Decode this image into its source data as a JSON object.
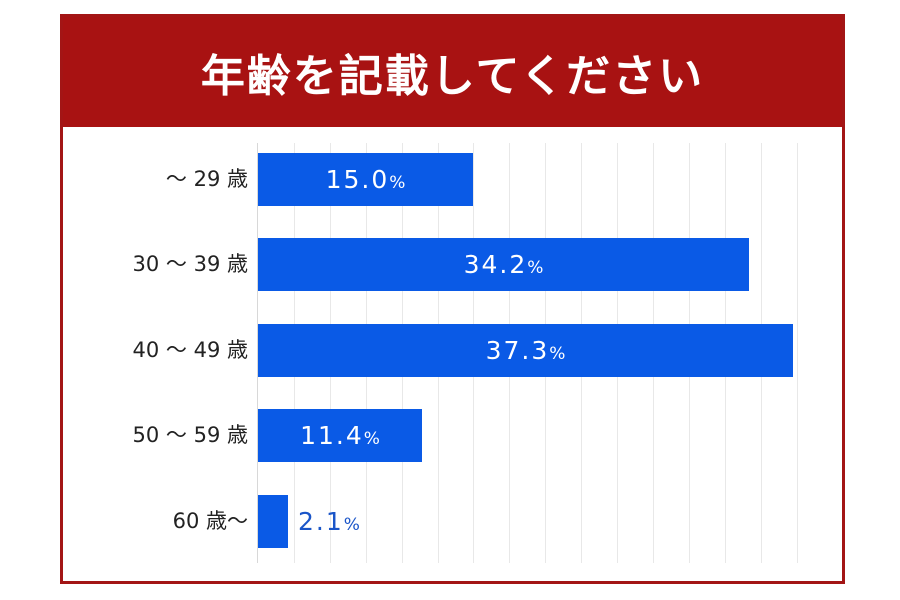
{
  "title": "年齢を記載してください",
  "colors": {
    "header": "#a81212",
    "bar": "#0a5ae6",
    "border": "#a31515",
    "outside_label": "#1a55c8"
  },
  "rows": [
    {
      "label": "～ 29 歳",
      "value": "15.0",
      "unit": "%"
    },
    {
      "label": "30 ～ 39 歳",
      "value": "34.2",
      "unit": "%"
    },
    {
      "label": "40 ～ 49 歳",
      "value": "37.3",
      "unit": "%"
    },
    {
      "label": "50 ～ 59 歳",
      "value": "11.4",
      "unit": "%"
    },
    {
      "label": "60 歳～",
      "value": "2.1",
      "unit": "%"
    }
  ],
  "chart_data": {
    "type": "bar",
    "orientation": "horizontal",
    "title": "年齢を記載してください",
    "categories": [
      "～29歳",
      "30～39歳",
      "40～49歳",
      "50～59歳",
      "60歳～"
    ],
    "values": [
      15.0,
      34.2,
      37.3,
      11.4,
      2.1
    ],
    "unit": "%",
    "xlabel": "",
    "ylabel": "",
    "xlim": [
      0,
      37.6
    ],
    "grid": true,
    "legend": null,
    "data_labels": true
  }
}
